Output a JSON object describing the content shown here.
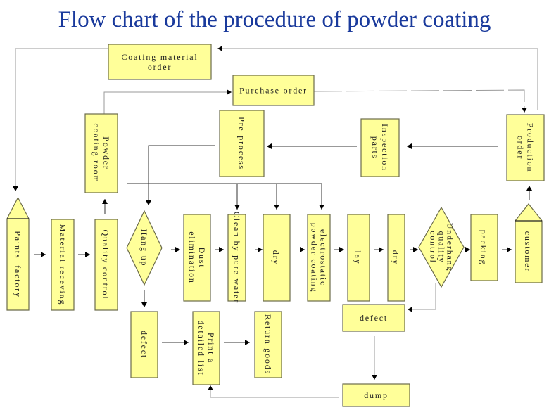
{
  "title": "Flow chart of the procedure of powder coating",
  "colors": {
    "box_fill": "#ffff99",
    "box_stroke": "#6b6b4a",
    "title": "#1a3a9c",
    "line": "#333333",
    "light_line": "#9a9a9a"
  },
  "nodes": [
    {
      "id": "coating-material-order",
      "shape": "box",
      "lines": [
        "Coating material",
        "order"
      ]
    },
    {
      "id": "purchase-order",
      "shape": "box",
      "lines": [
        "Purchase order"
      ]
    },
    {
      "id": "powder-coating-room",
      "shape": "box",
      "vertical": true,
      "lines": [
        "Powder",
        "coating room"
      ]
    },
    {
      "id": "pre-process",
      "shape": "box",
      "vertical": true,
      "lines": [
        "Pre-process"
      ]
    },
    {
      "id": "inspection-parts",
      "shape": "box",
      "vertical": true,
      "lines": [
        "Inspection",
        "parts"
      ]
    },
    {
      "id": "production-order",
      "shape": "box",
      "vertical": true,
      "lines": [
        "Production",
        "order"
      ]
    },
    {
      "id": "paints-factory",
      "shape": "pentagon",
      "vertical": true,
      "lines": [
        "Paints' factory"
      ]
    },
    {
      "id": "material-receving",
      "shape": "box",
      "vertical": true,
      "lines": [
        "Material receving"
      ]
    },
    {
      "id": "quality-control",
      "shape": "box",
      "vertical": true,
      "lines": [
        "Quality control"
      ]
    },
    {
      "id": "hang-up",
      "shape": "diamond",
      "vertical": true,
      "lines": [
        "Hang up"
      ]
    },
    {
      "id": "dust-elimination",
      "shape": "box",
      "vertical": true,
      "lines": [
        "Dust",
        "elimination"
      ]
    },
    {
      "id": "clean-by-pure-water",
      "shape": "box",
      "vertical": true,
      "lines": [
        "Clean by pure water"
      ]
    },
    {
      "id": "dry-1",
      "shape": "box",
      "vertical": true,
      "lines": [
        "dry"
      ]
    },
    {
      "id": "electrostatic-powder-coating",
      "shape": "box",
      "vertical": true,
      "lines": [
        "electrostatic",
        "powder coating"
      ]
    },
    {
      "id": "lay",
      "shape": "box",
      "vertical": true,
      "lines": [
        "lay"
      ]
    },
    {
      "id": "dry-2",
      "shape": "box",
      "vertical": true,
      "lines": [
        "dry"
      ]
    },
    {
      "id": "underhang-quality-control",
      "shape": "diamond",
      "vertical": true,
      "lines": [
        "Underhang",
        "quality",
        "control"
      ]
    },
    {
      "id": "packing",
      "shape": "box",
      "vertical": true,
      "lines": [
        "packing"
      ]
    },
    {
      "id": "customer",
      "shape": "pentagon",
      "vertical": true,
      "lines": [
        "customer"
      ]
    },
    {
      "id": "defect-left",
      "shape": "box",
      "vertical": true,
      "lines": [
        "defect"
      ]
    },
    {
      "id": "print-detailed-list",
      "shape": "box",
      "vertical": true,
      "lines": [
        "Print a",
        "detailed list"
      ]
    },
    {
      "id": "return-goods",
      "shape": "box",
      "vertical": true,
      "lines": [
        "Return goods"
      ]
    },
    {
      "id": "defect-right",
      "shape": "box",
      "lines": [
        "defect"
      ]
    },
    {
      "id": "dump",
      "shape": "box",
      "lines": [
        "dump"
      ]
    }
  ]
}
